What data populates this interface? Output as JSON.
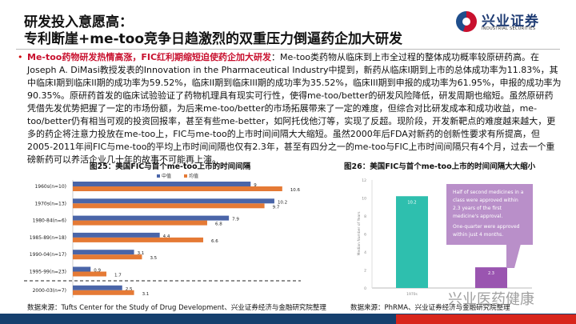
{
  "header": {
    "title_line1": "研发投入意愿高：",
    "title_line2": "专利断崖+me-too竞争日趋激烈的双重压力倒逼药企加大研发",
    "logo_cn": "兴业证券",
    "logo_en": "INDUSTRIAL SECURITIES"
  },
  "body": {
    "bullet": "•",
    "highlight": "Me-too药物研发热情高涨，FIC红利期缩短迫使药企加大研发",
    "text": "：Me-too类药物从临床到上市全过程的整体成功概率较原研药高。在Joseph A. DiMasi教授发表的Innovation in the Pharmaceutical Industry中提到，新药从临床I期到上市的总体成功率为11.83%，其中临床I期到临床II期的成功率为59.52%，临床II期到临床III期的成功率为35.52%，临床III期到申报的成功率为61.95%，申报的成功率为90.35%。原研药首发的临床试验验证了药物机理具有现实可行性，使得me-too/better的研发风险降低，研发周期也缩短。虽然原研药凭借先发优势把握了一定的市场份额，为后来me-too/better的市场拓展带来了一定的难度，但综合对比研发成本和成功收益，me-too/better仍有相当可观的投资回报率，甚至有些me-better，如阿托伐他汀等，实现了反超。现阶段，开发新靶点的难度越来越大，更多的药企将注意力投放在me-too上，FIC与me-too的上市时间间隔大大缩短。虽然2000年后FDA对新药的创新性要求有所提高，但2005-2011年间FIC与me-too的平均上市时间间隔也仅有2.3年，甚至有四分之一的me-too与FIC上市时间间隔只有4个月，过去一个重磅新药可以养活企业几十年的故事不可能再上演。"
  },
  "fig25": {
    "caption": "图25：美国FIC与首个me-too上市的时间间隔",
    "source": "数据来源：Tufts Center for the Study of Drug Development、兴业证券经济与金融研究院整理"
  },
  "fig26": {
    "caption": "图26：美国FIC与首个me-too上市的时间间隔大大缩小",
    "source": "数据来源：PhRMA、兴业证券经济与金融研究院整理",
    "callout1": "Half of second medicines in a class were approved within 2.3 years of the first medicine's approval.",
    "callout2": "One-quarter were approved within just 4 months."
  },
  "watermark": "兴业医药健康",
  "chart_data": [
    {
      "type": "bar",
      "orientation": "horizontal",
      "categories": [
        "1960s(n=10)",
        "1970s(n=13)",
        "1980-84(n=6)",
        "1985-89(n=18)",
        "1990-04(n=17)",
        "1995-99(n=23)",
        "2000-03(n=7)"
      ],
      "series": [
        {
          "name": "中值",
          "color": "#4a65a8",
          "values": [
            9,
            10.2,
            7.9,
            4.4,
            3.1,
            0.9,
            2.5
          ]
        },
        {
          "name": "均值",
          "color": "#e57a35",
          "values": [
            10.6,
            9.7,
            6.8,
            6.6,
            3.5,
            1.7,
            3.1
          ]
        }
      ],
      "legend": "top",
      "xlim": [
        0,
        11
      ]
    },
    {
      "type": "bar",
      "categories": [
        "1970s",
        ""
      ],
      "values": [
        10.2,
        2.3
      ],
      "colors": [
        "#2ebfae",
        "#9a55b0"
      ],
      "ylabel": "Median Number of Years",
      "ylim": [
        0,
        12
      ],
      "yticks": [
        0,
        2,
        4,
        6,
        8,
        10,
        12
      ]
    }
  ]
}
